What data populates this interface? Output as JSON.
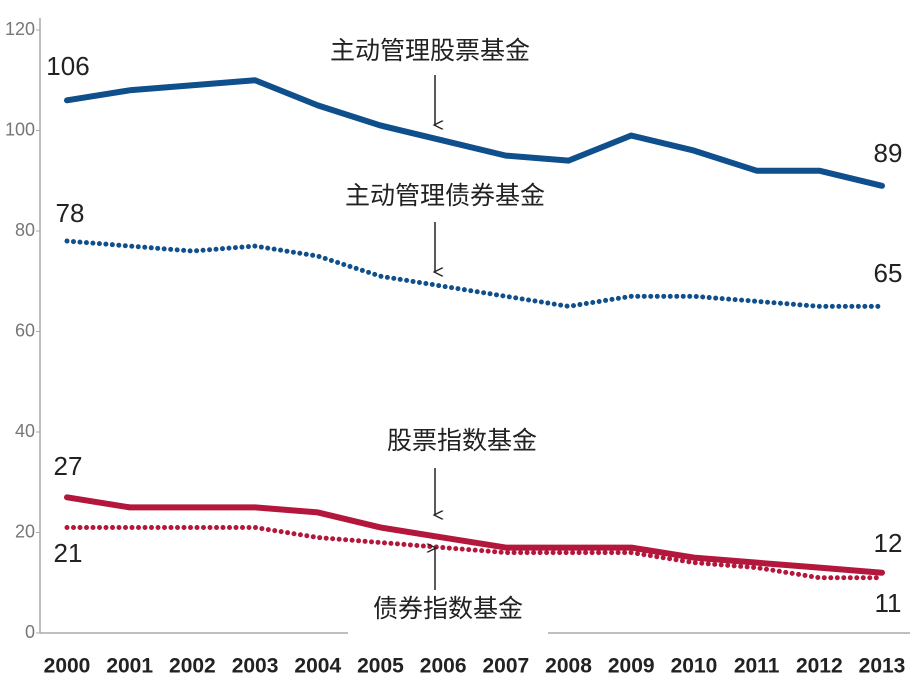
{
  "chart_data": {
    "type": "line",
    "categories": [
      "2000",
      "2001",
      "2002",
      "2003",
      "2004",
      "2005",
      "2006",
      "2007",
      "2008",
      "2009",
      "2010",
      "2011",
      "2012",
      "2013"
    ],
    "series": [
      {
        "name": "主动管理股票基金",
        "color": "#0e4f8c",
        "style": "solid",
        "values": [
          106,
          108,
          109,
          110,
          105,
          101,
          98,
          95,
          94,
          99,
          96,
          92,
          92,
          89
        ]
      },
      {
        "name": "主动管理债券基金",
        "color": "#0e4f8c",
        "style": "dotted",
        "values": [
          78,
          77,
          76,
          77,
          75,
          71,
          69,
          67,
          65,
          67,
          67,
          66,
          65,
          65
        ]
      },
      {
        "name": "股票指数基金",
        "color": "#b3173b",
        "style": "solid",
        "values": [
          27,
          25,
          25,
          25,
          24,
          21,
          19,
          17,
          17,
          17,
          15,
          14,
          13,
          12
        ]
      },
      {
        "name": "债券指数基金",
        "color": "#b3173b",
        "style": "dotted",
        "values": [
          21,
          21,
          21,
          21,
          19,
          18,
          17,
          16,
          16,
          16,
          14,
          13,
          11,
          11
        ]
      }
    ],
    "ylim": [
      0,
      120
    ],
    "yticks": [
      0,
      20,
      40,
      60,
      80,
      100,
      120
    ]
  }
}
